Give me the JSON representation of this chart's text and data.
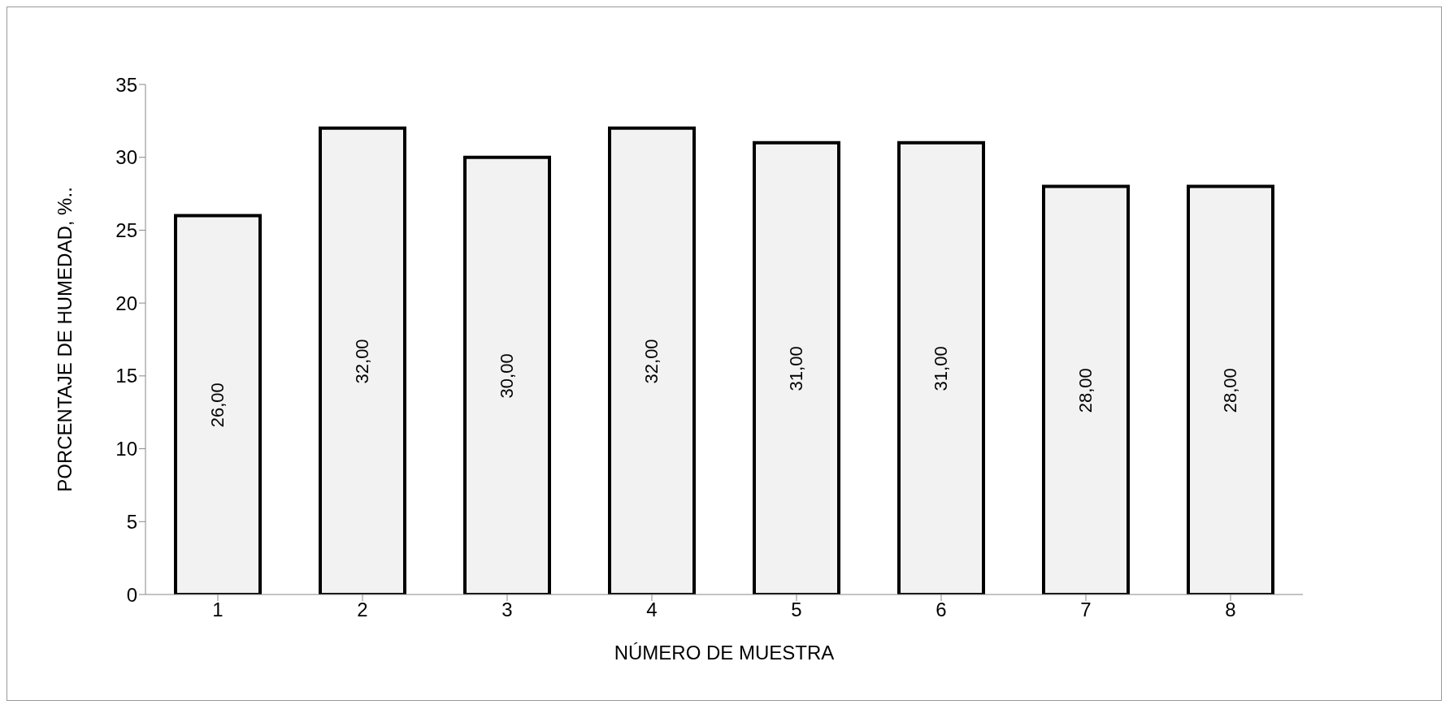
{
  "chart_data": {
    "type": "bar",
    "xlabel": "NÚMERO DE MUESTRA",
    "ylabel": "PORCENTAJE  DE HUMEDAD, %..",
    "categories": [
      "1",
      "2",
      "3",
      "4",
      "5",
      "6",
      "7",
      "8"
    ],
    "values": [
      26,
      32,
      30,
      32,
      31,
      31,
      28,
      28
    ],
    "value_labels": [
      "26,00",
      "32,00",
      "30,00",
      "32,00",
      "31,00",
      "31,00",
      "28,00",
      "28,00"
    ],
    "color": "#f2f2f2",
    "ylim": [
      0,
      35
    ],
    "yticks": [
      0,
      5,
      10,
      15,
      20,
      25,
      30,
      35
    ],
    "grid": false,
    "legend": false
  }
}
